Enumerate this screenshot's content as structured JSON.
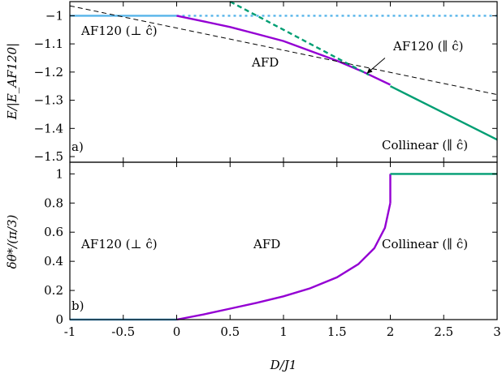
{
  "chart_data": [
    {
      "type": "line",
      "panel": "a)",
      "xlim": [
        -1,
        3
      ],
      "ylim": [
        -1.52,
        -0.95
      ],
      "ylabel": "E/|E_AF120|",
      "xticks": [
        "-1",
        "-0.5",
        "0",
        "0.5",
        "1",
        "1.5",
        "2",
        "2.5",
        "3"
      ],
      "yticks": [
        {
          "v": -1.0,
          "label": "−1"
        },
        {
          "v": -1.1,
          "label": "−1.1"
        },
        {
          "v": -1.2,
          "label": "−1.2"
        },
        {
          "v": -1.3,
          "label": "−1.3"
        },
        {
          "v": -1.4,
          "label": "−1.4"
        },
        {
          "v": -1.5,
          "label": "−1.5"
        }
      ],
      "grid": false,
      "series": [
        {
          "color": "#56b4e9",
          "style": "solid",
          "x": [
            -1,
            0
          ],
          "y": [
            -1.0,
            -1.0
          ]
        },
        {
          "color": "#56b4e9",
          "style": "dotted",
          "x": [
            0,
            3
          ],
          "y": [
            -1.0,
            -1.0
          ]
        },
        {
          "color": "#9400d3",
          "style": "solid",
          "x": [
            0,
            0.25,
            0.5,
            0.75,
            1.0,
            1.25,
            1.5,
            1.75,
            2.0
          ],
          "y": [
            -1.0,
            -1.02,
            -1.04,
            -1.065,
            -1.09,
            -1.125,
            -1.16,
            -1.2,
            -1.245
          ]
        },
        {
          "color": "#009e73",
          "style": "dashed",
          "x": [
            0.5,
            1.0,
            1.5,
            1.8
          ],
          "y": [
            -0.95,
            -1.05,
            -1.15,
            -1.21
          ]
        },
        {
          "color": "#009e73",
          "style": "solid",
          "x": [
            2.0,
            2.5,
            3.0
          ],
          "y": [
            -1.25,
            -1.345,
            -1.44
          ]
        },
        {
          "color": "#000000",
          "style": "dashed",
          "x": [
            -1,
            3
          ],
          "y": [
            -0.965,
            -1.28
          ]
        }
      ],
      "annotations": [
        "AF120 (⊥ ĉ)",
        "AFD",
        "AF120 (∥ ĉ)",
        "Collinear (∥ ĉ)",
        "a)"
      ]
    },
    {
      "type": "line",
      "panel": "b)",
      "xlim": [
        -1,
        3
      ],
      "ylim": [
        0,
        1.08
      ],
      "xlabel": "D/J1",
      "ylabel": "δθ*/(π/3)",
      "xticks": [
        "-1",
        "-0.5",
        "0",
        "0.5",
        "1",
        "1.5",
        "2",
        "2.5",
        "3"
      ],
      "yticks": [
        {
          "v": 0,
          "label": "0"
        },
        {
          "v": 0.2,
          "label": "0.2"
        },
        {
          "v": 0.4,
          "label": "0.4"
        },
        {
          "v": 0.6,
          "label": "0.6"
        },
        {
          "v": 0.8,
          "label": "0.8"
        },
        {
          "v": 1,
          "label": "1"
        }
      ],
      "grid": false,
      "series": [
        {
          "color": "#56b4e9",
          "style": "solid",
          "x": [
            -1,
            0
          ],
          "y": [
            0,
            0
          ]
        },
        {
          "color": "#9400d3",
          "style": "solid",
          "x": [
            0,
            0.25,
            0.5,
            0.75,
            1.0,
            1.25,
            1.5,
            1.7,
            1.85,
            1.95,
            2.0
          ],
          "y": [
            0,
            0.035,
            0.075,
            0.115,
            0.16,
            0.215,
            0.29,
            0.38,
            0.49,
            0.63,
            0.8
          ]
        },
        {
          "color": "#9400d3",
          "style": "solid",
          "x": [
            2.0,
            2.0
          ],
          "y": [
            0.8,
            1.0
          ]
        },
        {
          "color": "#009e73",
          "style": "solid",
          "x": [
            2.0,
            3.0
          ],
          "y": [
            1.0,
            1.0
          ]
        }
      ],
      "annotations": [
        "AF120 (⊥ ĉ)",
        "AFD",
        "Collinear (∥ ĉ)",
        "b)"
      ]
    }
  ]
}
